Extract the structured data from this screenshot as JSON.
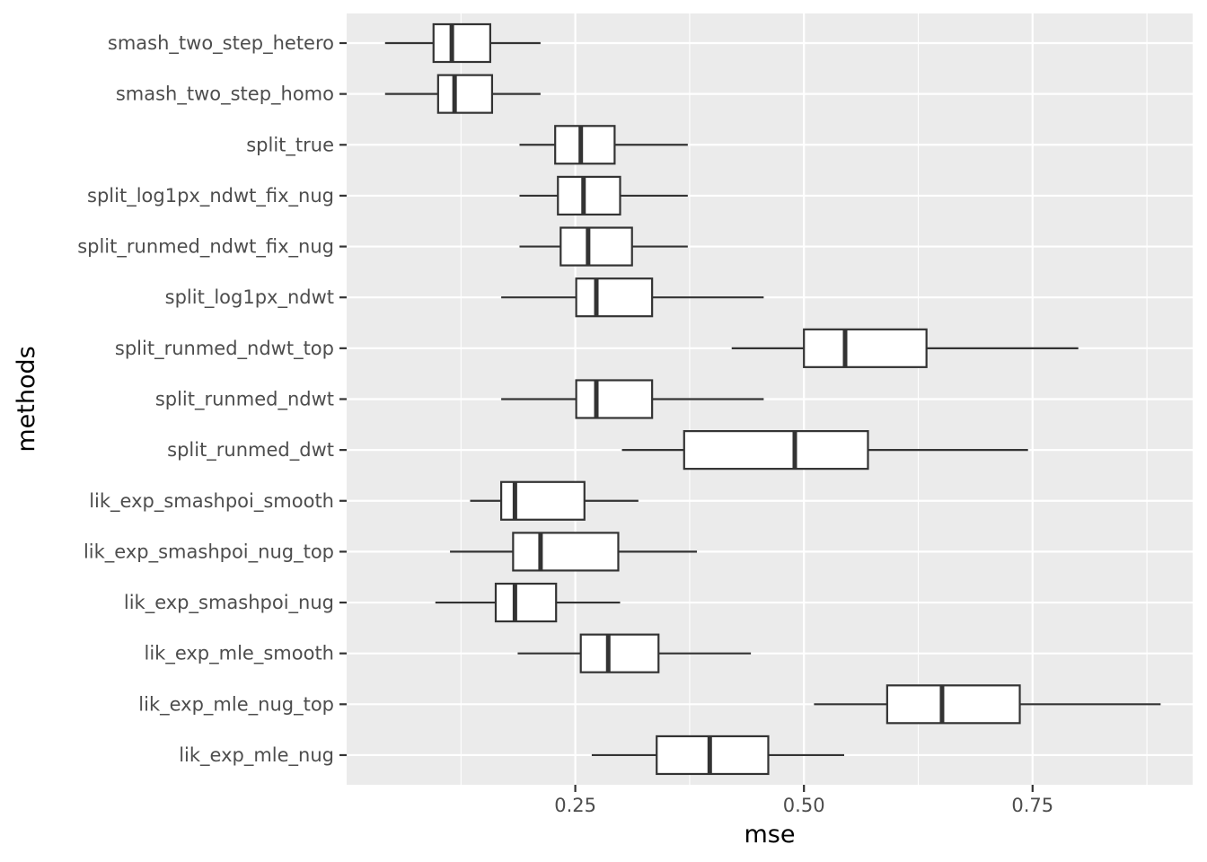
{
  "chart_data": {
    "type": "boxplot",
    "orientation": "horizontal",
    "xlabel": "mse",
    "ylabel": "methods",
    "xlim": [
      0.0,
      0.925
    ],
    "x_ticks": [
      {
        "value": 0.25,
        "label": "0.25"
      },
      {
        "value": 0.5,
        "label": "0.50"
      },
      {
        "value": 0.75,
        "label": "0.75"
      }
    ],
    "x_minor_ticks": [
      0.125,
      0.375,
      0.625,
      0.875
    ],
    "colors": {
      "panel": "#ebebeb",
      "grid": "#ffffff",
      "box_fill": "#ffffff",
      "box_stroke": "#333333",
      "tick": "#333333"
    },
    "categories": [
      "smash_two_step_hetero",
      "smash_two_step_homo",
      "split_true",
      "split_log1px_ndwt_fix_nug",
      "split_runmed_ndwt_fix_nug",
      "split_log1px_ndwt",
      "split_runmed_ndwt_top",
      "split_runmed_ndwt",
      "split_runmed_dwt",
      "lik_exp_smashpoi_smooth",
      "lik_exp_smashpoi_nug_top",
      "lik_exp_smashpoi_nug",
      "lik_exp_mle_smooth",
      "lik_exp_mle_nug_top",
      "lik_exp_mle_nug"
    ],
    "boxes": [
      {
        "min": 0.042,
        "q1": 0.095,
        "median": 0.115,
        "q3": 0.157,
        "max": 0.212
      },
      {
        "min": 0.042,
        "q1": 0.1,
        "median": 0.118,
        "q3": 0.159,
        "max": 0.212
      },
      {
        "min": 0.189,
        "q1": 0.228,
        "median": 0.256,
        "q3": 0.293,
        "max": 0.373
      },
      {
        "min": 0.189,
        "q1": 0.231,
        "median": 0.259,
        "q3": 0.299,
        "max": 0.373
      },
      {
        "min": 0.189,
        "q1": 0.234,
        "median": 0.264,
        "q3": 0.312,
        "max": 0.373
      },
      {
        "min": 0.169,
        "q1": 0.251,
        "median": 0.273,
        "q3": 0.334,
        "max": 0.456
      },
      {
        "min": 0.421,
        "q1": 0.5,
        "median": 0.545,
        "q3": 0.634,
        "max": 0.8
      },
      {
        "min": 0.169,
        "q1": 0.251,
        "median": 0.273,
        "q3": 0.334,
        "max": 0.456
      },
      {
        "min": 0.301,
        "q1": 0.369,
        "median": 0.49,
        "q3": 0.57,
        "max": 0.745
      },
      {
        "min": 0.135,
        "q1": 0.169,
        "median": 0.184,
        "q3": 0.26,
        "max": 0.319
      },
      {
        "min": 0.113,
        "q1": 0.182,
        "median": 0.212,
        "q3": 0.297,
        "max": 0.383
      },
      {
        "min": 0.097,
        "q1": 0.163,
        "median": 0.184,
        "q3": 0.229,
        "max": 0.299
      },
      {
        "min": 0.187,
        "q1": 0.256,
        "median": 0.286,
        "q3": 0.341,
        "max": 0.442
      },
      {
        "min": 0.511,
        "q1": 0.591,
        "median": 0.651,
        "q3": 0.736,
        "max": 0.89
      },
      {
        "min": 0.268,
        "q1": 0.339,
        "median": 0.397,
        "q3": 0.461,
        "max": 0.544
      }
    ]
  }
}
